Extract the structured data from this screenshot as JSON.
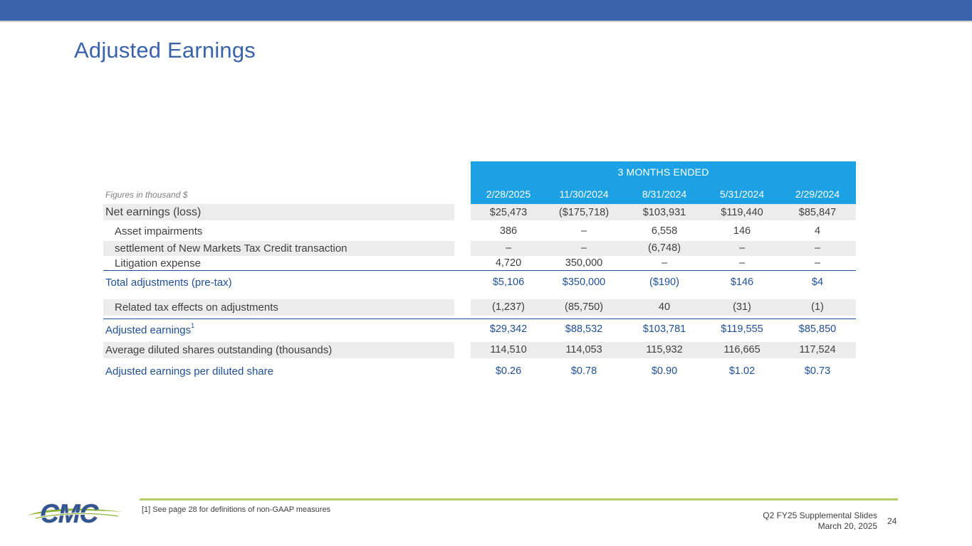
{
  "page": {
    "title": "Adjusted Earnings"
  },
  "table": {
    "units_note": "Figures in thousand $",
    "group_header": "3 MONTHS ENDED",
    "columns": [
      "2/28/2025",
      "11/30/2024",
      "8/31/2024",
      "5/31/2024",
      "2/29/2024"
    ],
    "rows": [
      {
        "label": "Net earnings (loss)",
        "values": [
          "$25,473",
          "($175,718)",
          "$103,931",
          "$119,440",
          "$85,847"
        ]
      },
      {
        "label": "Asset impairments",
        "values": [
          "386",
          "–",
          "6,558",
          "146",
          "4"
        ]
      },
      {
        "label": "settlement of New Markets Tax Credit transaction",
        "values": [
          "–",
          "–",
          "(6,748)",
          "–",
          "–"
        ]
      },
      {
        "label": "Litigation expense",
        "values": [
          "4,720",
          "350,000",
          "–",
          "–",
          "–"
        ]
      },
      {
        "label": "Total adjustments (pre-tax)",
        "values": [
          "$5,106",
          "$350,000",
          "($190)",
          "$146",
          "$4"
        ]
      },
      {
        "label": "Related tax effects on adjustments",
        "values": [
          "(1,237)",
          "(85,750)",
          "40",
          "(31)",
          "(1)"
        ]
      },
      {
        "label": "Adjusted earnings",
        "footnote_mark": "1",
        "values": [
          "$29,342",
          "$88,532",
          "$103,781",
          "$119,555",
          "$85,850"
        ]
      },
      {
        "label": "Average diluted shares outstanding (thousands)",
        "values": [
          "114,510",
          "114,053",
          "115,932",
          "116,665",
          "117,524"
        ]
      },
      {
        "label": "Adjusted earnings per diluted share",
        "values": [
          "$0.26",
          "$0.78",
          "$0.90",
          "$1.02",
          "$0.73"
        ]
      }
    ]
  },
  "footer": {
    "footnote": "[1] See page 28 for definitions of non-GAAP measures",
    "deck_title": "Q2 FY25 Supplemental Slides",
    "date": "March 20, 2025",
    "page_number": "24",
    "logo_text": "CMC"
  },
  "colors": {
    "brand_blue": "#3a63ab",
    "header_cyan": "#1da1e5",
    "emphasis_navy": "#1f4f96",
    "footer_green": "#b5cc6a"
  }
}
